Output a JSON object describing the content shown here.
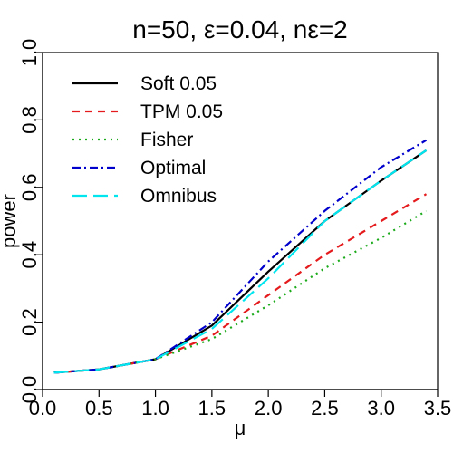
{
  "chart_data": {
    "type": "line",
    "title": "n=50, ε=0.04, nε=2",
    "xlabel": "μ",
    "ylabel": "power",
    "xlim": [
      0,
      3.5
    ],
    "ylim": [
      0,
      1
    ],
    "xticks": [
      "0.0",
      "0.5",
      "1.0",
      "1.5",
      "2.0",
      "2.5",
      "3.0",
      "3.5"
    ],
    "yticks": [
      "0.0",
      "0.2",
      "0.4",
      "0.6",
      "0.8",
      "1.0"
    ],
    "grid": false,
    "legend_position": "top-left",
    "x": [
      0.1,
      0.5,
      1.0,
      1.5,
      2.0,
      2.5,
      3.0,
      3.4
    ],
    "series": [
      {
        "name": "Soft 0.05",
        "color": "#000000",
        "dash": "solid",
        "values": [
          0.05,
          0.06,
          0.09,
          0.19,
          0.35,
          0.5,
          0.62,
          0.71
        ]
      },
      {
        "name": "TPM 0.05",
        "color": "#e41a1c",
        "dash": "dashed",
        "values": [
          0.05,
          0.06,
          0.09,
          0.16,
          0.28,
          0.4,
          0.5,
          0.58
        ]
      },
      {
        "name": "Fisher",
        "color": "#1aaa1a",
        "dash": "dotted",
        "values": [
          0.05,
          0.06,
          0.09,
          0.15,
          0.25,
          0.36,
          0.45,
          0.53
        ]
      },
      {
        "name": "Optimal",
        "color": "#0000cc",
        "dash": "dashdot",
        "values": [
          0.05,
          0.06,
          0.09,
          0.2,
          0.38,
          0.53,
          0.66,
          0.74
        ]
      },
      {
        "name": "Omnibus",
        "color": "#00e5ee",
        "dash": "longdash",
        "values": [
          0.05,
          0.06,
          0.09,
          0.18,
          0.33,
          0.5,
          0.62,
          0.71
        ]
      }
    ]
  }
}
